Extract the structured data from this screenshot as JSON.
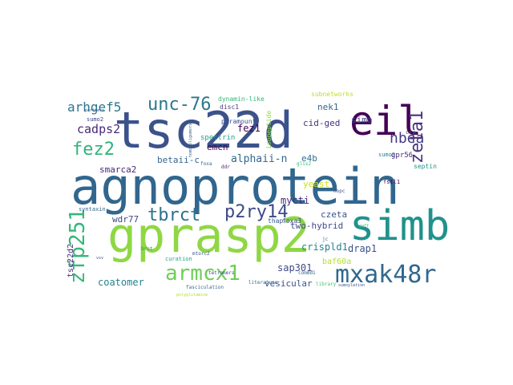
{
  "words": [
    {
      "text": "agnoprotein",
      "color": "#31668e"
    },
    {
      "text": "gprasp2",
      "color": "#8fd744"
    },
    {
      "text": "tsc22d",
      "color": "#3b528b"
    },
    {
      "text": "simb",
      "color": "#21918c"
    },
    {
      "text": "eil",
      "color": "#440154"
    },
    {
      "text": "mxak48r",
      "color": "#31688e"
    },
    {
      "text": "armcx1",
      "color": "#6ece58"
    },
    {
      "text": "zfp251",
      "color": "#35b779"
    },
    {
      "text": "unc-76",
      "color": "#2a788e"
    },
    {
      "text": "p2ry14",
      "color": "#3e4a89"
    },
    {
      "text": "tbrct",
      "color": "#2c728e"
    },
    {
      "text": "fez2",
      "color": "#2fb47c"
    },
    {
      "text": "zeta1",
      "color": "#46327e"
    },
    {
      "text": "nbea",
      "color": "#443983"
    },
    {
      "text": "arhgef5",
      "color": "#2a788e"
    },
    {
      "text": "cadps2",
      "color": "#482878"
    },
    {
      "text": "alphaii-n",
      "color": "#31688e"
    },
    {
      "text": "fez1",
      "color": "#440154"
    },
    {
      "text": "mycti",
      "color": "#472d7b"
    },
    {
      "text": "crispld1",
      "color": "#25858e"
    },
    {
      "text": "drap1",
      "color": "#3b528b"
    },
    {
      "text": "sap301",
      "color": "#3e4989"
    },
    {
      "text": "coatomer",
      "color": "#26828e"
    },
    {
      "text": "vesicular",
      "color": "#3b528b"
    },
    {
      "text": "tsc22d2",
      "color": "#472c7a"
    },
    {
      "text": "wdr77",
      "color": "#3f4788"
    },
    {
      "text": "smarca2",
      "color": "#482576"
    },
    {
      "text": "betaii-c",
      "color": "#31688e"
    },
    {
      "text": "emcn",
      "color": "#440154"
    },
    {
      "text": "e4b",
      "color": "#2c728e"
    },
    {
      "text": "sima",
      "color": "#414487"
    },
    {
      "text": "cid-ged",
      "color": "#46307e"
    },
    {
      "text": "nek1",
      "color": "#31688e"
    },
    {
      "text": "yeast",
      "color": "#c8e020"
    },
    {
      "text": "czeta",
      "color": "#3b528b"
    },
    {
      "text": "two-hybrid",
      "color": "#3e4a89"
    },
    {
      "text": "baf60a",
      "color": "#b5de2b"
    },
    {
      "text": "gpr56",
      "color": "#482878"
    },
    {
      "text": "spectrin",
      "color": "#1f9e89"
    },
    {
      "text": "paramount",
      "color": "#3b528b"
    },
    {
      "text": "dynamin-like",
      "color": "#35b779"
    },
    {
      "text": "disc1",
      "color": "#443a83"
    },
    {
      "text": "isopeptide",
      "color": "#90d743"
    },
    {
      "text": "subnetworks",
      "color": "#bddf26"
    },
    {
      "text": "foxa3",
      "color": "#3e4a89"
    },
    {
      "text": "thap",
      "color": "#38588c"
    },
    {
      "text": "septin",
      "color": "#1f988b"
    },
    {
      "text": "fstl1",
      "color": "#440154"
    },
    {
      "text": "sumo2",
      "color": "#414487"
    },
    {
      "text": "sumo3",
      "color": "#26828e"
    },
    {
      "text": "cra",
      "color": "#3b528b"
    },
    {
      "text": "syntaxin",
      "color": "#31688e"
    },
    {
      "text": "curation",
      "color": "#20a386"
    },
    {
      "text": "mtorc2",
      "color": "#3b528b"
    },
    {
      "text": "commd1",
      "color": "#31688e"
    },
    {
      "text": "library",
      "color": "#44bf70"
    },
    {
      "text": "fasciculation",
      "color": "#31688e"
    },
    {
      "text": "jc",
      "color": "#2c728e"
    },
    {
      "text": "foxa",
      "color": "#31688e"
    },
    {
      "text": "glis2",
      "color": "#35b779"
    },
    {
      "text": "hopc",
      "color": "#3b528b"
    },
    {
      "text": "brct",
      "color": "#21918c"
    },
    {
      "text": "tetramers",
      "color": "#3b528b"
    },
    {
      "text": "literature",
      "color": "#2c728e"
    },
    {
      "text": "ddr",
      "color": "#482878"
    },
    {
      "text": "partners",
      "color": "#3e4a89"
    },
    {
      "text": "polyglutamine",
      "color": "#b5de2b"
    },
    {
      "text": "sumoylation",
      "color": "#3b528b"
    },
    {
      "text": "gaff",
      "color": "#35b779"
    },
    {
      "text": "vsv",
      "color": "#3b528b"
    },
    {
      "text": "homo-oligomers",
      "color": "#31688e"
    }
  ]
}
